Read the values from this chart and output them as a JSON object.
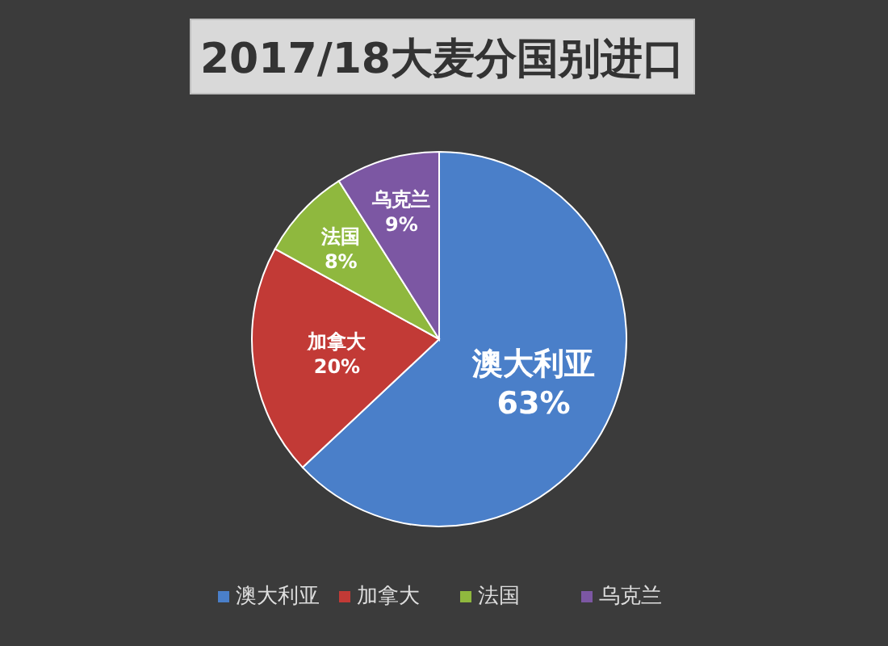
{
  "chart_data": {
    "type": "pie",
    "title": "2017/18大麦分国别进口",
    "categories": [
      "澳大利亚",
      "加拿大",
      "法国",
      "乌克兰"
    ],
    "values": [
      63,
      20,
      8,
      9
    ],
    "colors": [
      "#4a7fc9",
      "#c23a36",
      "#8fb83e",
      "#7c57a3"
    ],
    "value_labels": [
      "63%",
      "20%",
      "8%",
      "9%"
    ],
    "legend": "bottom"
  }
}
